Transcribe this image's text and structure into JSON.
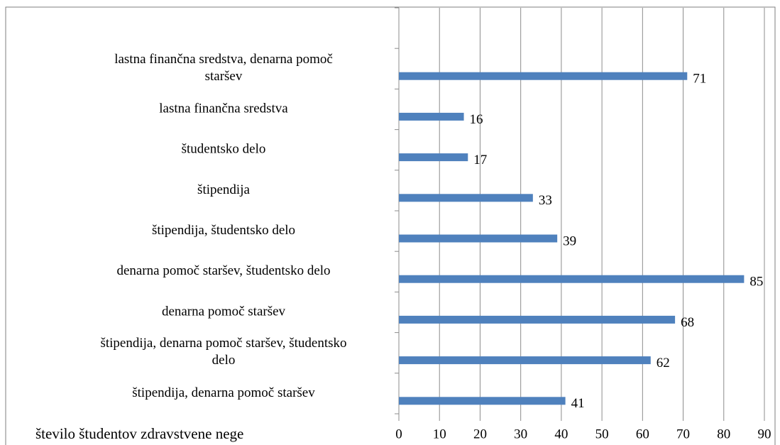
{
  "chart_data": {
    "type": "bar",
    "orientation": "horizontal",
    "categories": [
      null,
      "lastna finančna sredstva, denarna pomoč staršev",
      "lastna finančna sredstva",
      "študentsko delo",
      "štipendija",
      "štipendija, študentsko delo",
      "denarna pomoč staršev, študentsko delo",
      "denarna pomoč staršev",
      "štipendija, denarna pomoč staršev, študentsko delo",
      "štipendija, denarna pomoč staršev"
    ],
    "series": [
      {
        "name": "število študentov zdravstvene nege",
        "color": "#4f81bd",
        "values": [
          null,
          71,
          16,
          17,
          33,
          39,
          85,
          68,
          62,
          41
        ]
      }
    ],
    "xlim": [
      0,
      90
    ],
    "xticks": [
      0,
      10,
      20,
      30,
      40,
      50,
      60,
      70,
      80,
      90
    ],
    "grid": true,
    "legend": "bottom-left"
  }
}
